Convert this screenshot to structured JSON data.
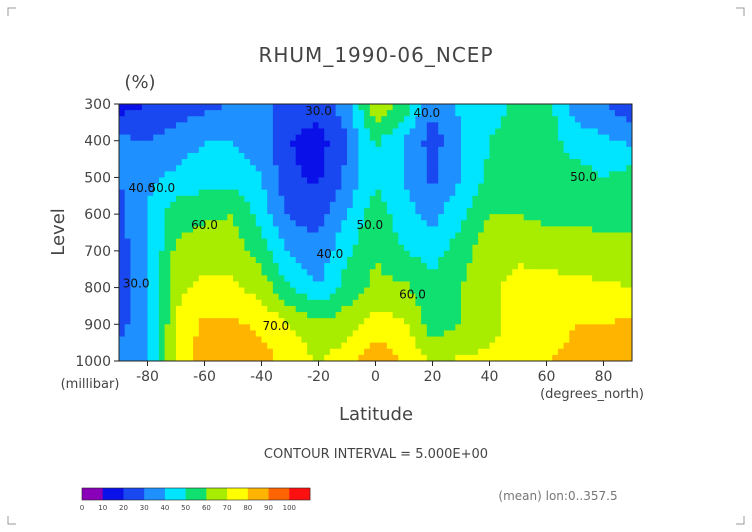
{
  "chart_data": {
    "type": "heatmap",
    "title": "RHUM_1990-06_NCEP",
    "units": "(%)",
    "xlabel": "Latitude",
    "x_unit": "(degrees_north)",
    "ylabel": "Level",
    "y_unit": "(millibar)",
    "xlim": [
      -90,
      90
    ],
    "ylim": [
      1000,
      300
    ],
    "x_ticks": [
      "-80",
      "-60",
      "-40",
      "-20",
      "0",
      "20",
      "40",
      "60",
      "80"
    ],
    "x_tick_values": [
      -80,
      -60,
      -40,
      -20,
      0,
      20,
      40,
      60,
      80
    ],
    "y_ticks": [
      "300",
      "400",
      "500",
      "600",
      "700",
      "800",
      "900",
      "1000"
    ],
    "y_tick_values": [
      300,
      400,
      500,
      600,
      700,
      800,
      900,
      1000
    ],
    "contour_interval": "CONTOUR INTERVAL = 5.000E+00",
    "footer_note": "(mean) lon:0..357.5",
    "colorbar": {
      "ticks": [
        "0",
        "10",
        "20",
        "30",
        "40",
        "50",
        "60",
        "70",
        "80",
        "90",
        "100"
      ],
      "colors": [
        "#8a00b8",
        "#0a10e8",
        "#1a48f0",
        "#1e90ff",
        "#00e5ff",
        "#10e070",
        "#a8ec00",
        "#ffff00",
        "#ffb400",
        "#ff6400",
        "#ff1010"
      ]
    },
    "contour_labels": [
      {
        "text": "30.0",
        "lat": -20,
        "lev": 330
      },
      {
        "text": "40.0",
        "lat": 18,
        "lev": 335
      },
      {
        "text": "40.0",
        "lat": -82,
        "lev": 540
      },
      {
        "text": "50.0",
        "lat": -75,
        "lev": 540
      },
      {
        "text": "50.0",
        "lat": -2,
        "lev": 640
      },
      {
        "text": "50.0",
        "lat": 73,
        "lev": 510
      },
      {
        "text": "60.0",
        "lat": -60,
        "lev": 640
      },
      {
        "text": "40.0",
        "lat": -16,
        "lev": 720
      },
      {
        "text": "60.0",
        "lat": 13,
        "lev": 830
      },
      {
        "text": "30.0",
        "lat": -84,
        "lev": 800
      },
      {
        "text": "70.0",
        "lat": -35,
        "lev": 915
      }
    ],
    "x": [
      -90,
      -80,
      -70,
      -60,
      -50,
      -40,
      -30,
      -20,
      -10,
      0,
      10,
      20,
      30,
      40,
      50,
      60,
      70,
      80,
      90
    ],
    "levels": [
      300,
      400,
      500,
      600,
      700,
      800,
      900,
      1000
    ],
    "values": [
      [
        15,
        20,
        24,
        27,
        30,
        32,
        28,
        25,
        35,
        68,
        58,
        32,
        42,
        45,
        52,
        55,
        35,
        32,
        20
      ],
      [
        32,
        30,
        35,
        40,
        40,
        35,
        20,
        15,
        30,
        52,
        40,
        25,
        40,
        50,
        55,
        55,
        45,
        42,
        38
      ],
      [
        30,
        38,
        42,
        45,
        46,
        40,
        22,
        18,
        32,
        48,
        40,
        28,
        40,
        52,
        57,
        56,
        55,
        50,
        55
      ],
      [
        27,
        40,
        56,
        58,
        60,
        45,
        28,
        26,
        40,
        56,
        44,
        36,
        48,
        60,
        60,
        57,
        58,
        58,
        58
      ],
      [
        26,
        38,
        62,
        66,
        65,
        55,
        38,
        33,
        48,
        60,
        50,
        46,
        55,
        67,
        68,
        66,
        64,
        62,
        62
      ],
      [
        24,
        37,
        68,
        73,
        72,
        66,
        50,
        40,
        55,
        62,
        62,
        52,
        60,
        68,
        73,
        74,
        73,
        72,
        70
      ],
      [
        27,
        37,
        70,
        82,
        82,
        78,
        70,
        62,
        65,
        74,
        72,
        55,
        60,
        66,
        74,
        76,
        80,
        80,
        82
      ],
      [
        32,
        40,
        72,
        88,
        86,
        84,
        76,
        70,
        76,
        88,
        78,
        68,
        72,
        72,
        77,
        80,
        82,
        84,
        88
      ]
    ]
  }
}
